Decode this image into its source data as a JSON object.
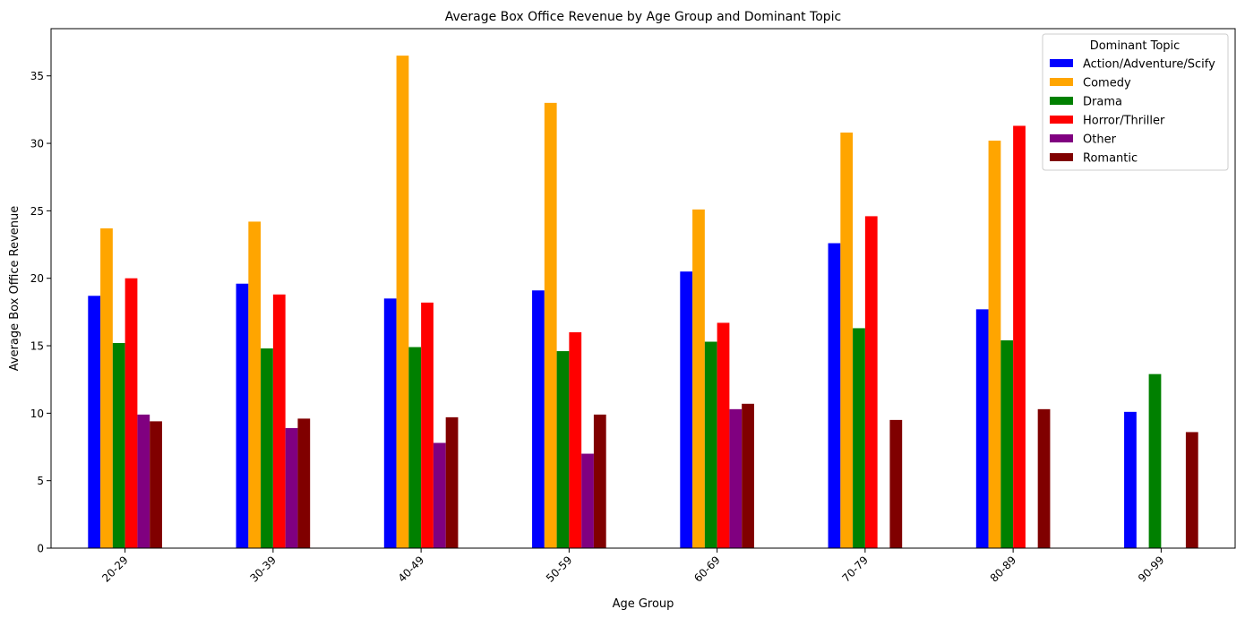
{
  "chart_data": {
    "type": "bar",
    "title": "Average Box Office Revenue by Age Group and Dominant Topic",
    "xlabel": "Age Group",
    "ylabel": "Average Box Office Revenue",
    "ylim": [
      0,
      38.5
    ],
    "yticks": [
      0,
      5,
      10,
      15,
      20,
      25,
      30,
      35
    ],
    "categories": [
      "20-29",
      "30-39",
      "40-49",
      "50-59",
      "60-69",
      "70-79",
      "80-89",
      "90-99"
    ],
    "legend": {
      "title": "Dominant Topic",
      "placement": "top-right"
    },
    "grid": false,
    "series": [
      {
        "name": "Action/Adventure/Scify",
        "color": "#0000ff",
        "values": [
          18.7,
          19.6,
          18.5,
          19.1,
          20.5,
          22.6,
          17.7,
          10.1
        ]
      },
      {
        "name": "Comedy",
        "color": "#ffa500",
        "values": [
          23.7,
          24.2,
          36.5,
          33.0,
          25.1,
          30.8,
          30.2,
          null
        ]
      },
      {
        "name": "Drama",
        "color": "#008000",
        "values": [
          15.2,
          14.8,
          14.9,
          14.6,
          15.3,
          16.3,
          15.4,
          12.9
        ]
      },
      {
        "name": "Horror/Thriller",
        "color": "#ff0000",
        "values": [
          20.0,
          18.8,
          18.2,
          16.0,
          16.7,
          24.6,
          31.3,
          null
        ]
      },
      {
        "name": "Other",
        "color": "#800080",
        "values": [
          9.9,
          8.9,
          7.8,
          7.0,
          10.3,
          null,
          null,
          null
        ]
      },
      {
        "name": "Romantic",
        "color": "#800000",
        "values": [
          9.4,
          9.6,
          9.7,
          9.9,
          10.7,
          9.5,
          10.3,
          8.6
        ]
      }
    ]
  }
}
